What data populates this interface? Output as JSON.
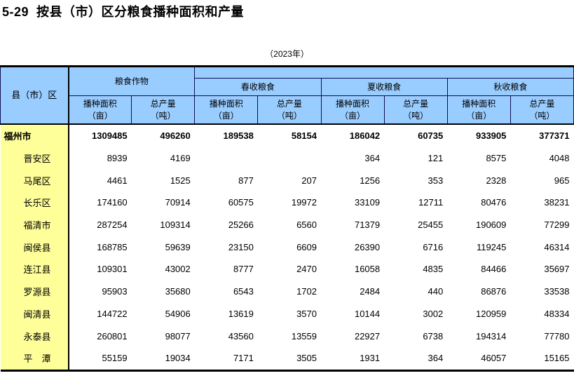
{
  "page": {
    "title": "5-29  按县（市）区分粮食播种面积和产量",
    "year_note": "（2023年）"
  },
  "colors": {
    "header_bg": "#99CCFF",
    "label_bg": "#FFFF99",
    "grid_line": "#0E0E52",
    "frame": "#000000",
    "text": "#000000"
  },
  "table": {
    "corner_header": "县（市）区",
    "groups": [
      {
        "label": "粮食作物"
      },
      {
        "label": "春收粮食"
      },
      {
        "label": "夏收粮食"
      },
      {
        "label": "秋收粮食"
      }
    ],
    "sub_headers": [
      {
        "line1": "播种面积",
        "line2": "（亩）"
      },
      {
        "line1": "总产量",
        "line2": "（吨）"
      },
      {
        "line1": "播种面积",
        "line2": "（亩）"
      },
      {
        "line1": "总产量",
        "line2": "（吨）"
      },
      {
        "line1": "播种面积",
        "line2": "（亩）"
      },
      {
        "line1": "总产量",
        "line2": "（吨）"
      },
      {
        "line1": "播种面积",
        "line2": "（亩）"
      },
      {
        "line1": "总产量",
        "line2": "（吨）"
      }
    ],
    "rows": [
      {
        "name": "福州市",
        "bold": true,
        "indent": false,
        "values": [
          "1309485",
          "496260",
          "189538",
          "58154",
          "186042",
          "60735",
          "933905",
          "377371"
        ]
      },
      {
        "name": "晋安区",
        "bold": false,
        "indent": true,
        "values": [
          "8939",
          "4169",
          "",
          "",
          "364",
          "121",
          "8575",
          "4048"
        ]
      },
      {
        "name": "马尾区",
        "bold": false,
        "indent": true,
        "values": [
          "4461",
          "1525",
          "877",
          "207",
          "1256",
          "353",
          "2328",
          "965"
        ]
      },
      {
        "name": "长乐区",
        "bold": false,
        "indent": true,
        "values": [
          "174160",
          "70914",
          "60575",
          "19972",
          "33109",
          "12711",
          "80476",
          "38231"
        ]
      },
      {
        "name": "福清市",
        "bold": false,
        "indent": true,
        "values": [
          "287254",
          "109314",
          "25266",
          "6560",
          "71379",
          "25455",
          "190609",
          "77299"
        ]
      },
      {
        "name": "闽侯县",
        "bold": false,
        "indent": true,
        "values": [
          "168785",
          "59639",
          "23150",
          "6609",
          "26390",
          "6716",
          "119245",
          "46314"
        ]
      },
      {
        "name": "连江县",
        "bold": false,
        "indent": true,
        "values": [
          "109301",
          "43002",
          "8777",
          "2470",
          "16058",
          "4835",
          "84466",
          "35697"
        ]
      },
      {
        "name": "罗源县",
        "bold": false,
        "indent": true,
        "values": [
          "95903",
          "35680",
          "6543",
          "1702",
          "2484",
          "440",
          "86876",
          "33538"
        ]
      },
      {
        "name": "闽清县",
        "bold": false,
        "indent": true,
        "values": [
          "144722",
          "54906",
          "13619",
          "3570",
          "10144",
          "3002",
          "120959",
          "48334"
        ]
      },
      {
        "name": "永泰县",
        "bold": false,
        "indent": true,
        "values": [
          "260801",
          "98077",
          "43560",
          "13559",
          "22927",
          "6738",
          "194314",
          "77780"
        ]
      },
      {
        "name": "平　潭",
        "bold": false,
        "indent": true,
        "values": [
          "55159",
          "19034",
          "7171",
          "3505",
          "1931",
          "364",
          "46057",
          "15165"
        ]
      }
    ]
  }
}
